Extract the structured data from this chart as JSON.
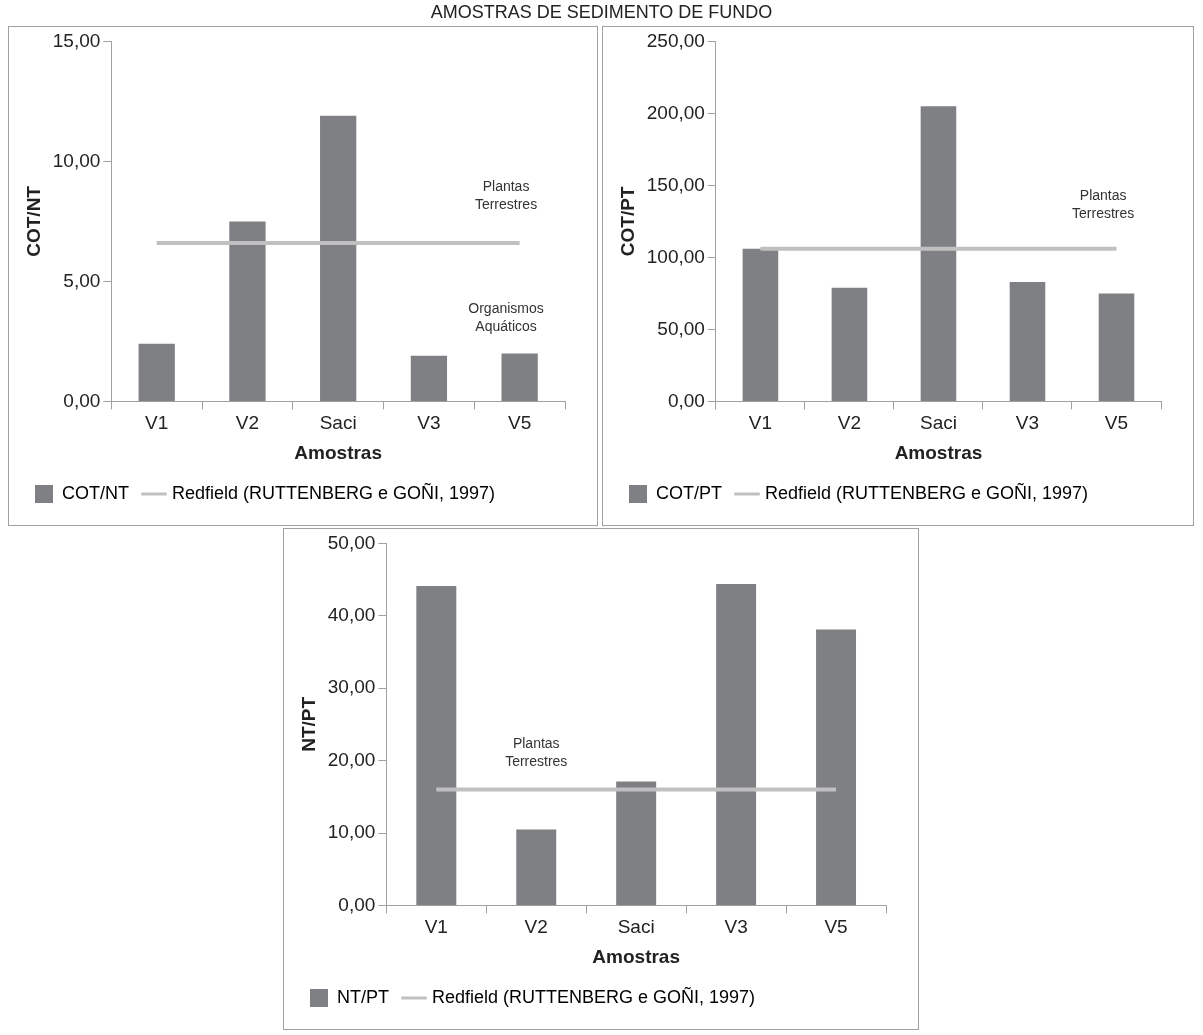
{
  "chart_data": [
    {
      "type": "bar",
      "title": "AMOSTRAS DE SEDIMENTO DE FUNDO",
      "xlabel": "Amostras",
      "ylabel": "COT/NT",
      "categories": [
        "V1",
        "V2",
        "Saci",
        "V3",
        "V5"
      ],
      "series": [
        {
          "name": "COT/NT",
          "color": "#7f8084",
          "values": [
            2.4,
            7.5,
            11.9,
            1.9,
            2.0
          ]
        },
        {
          "type": "line",
          "name": "Redfield (RUTTENBERG e GOÑI, 1997)",
          "color": "#c0c0c0",
          "values": [
            6.6,
            6.6,
            6.6,
            6.6,
            6.6
          ]
        }
      ],
      "ylim": [
        0,
        15
      ],
      "yticks": [
        {
          "value": 0,
          "label": "0,00"
        },
        {
          "value": 5,
          "label": "5,00"
        },
        {
          "value": 10,
          "label": "10,00"
        },
        {
          "value": 15,
          "label": "15,00"
        }
      ],
      "legend": "bottom",
      "marker": "none",
      "annotations": [
        "Plantas Terrestres",
        "Organismos Aquáticos"
      ]
    },
    {
      "type": "bar",
      "xlabel": "Amostras",
      "ylabel": "COT/PT",
      "categories": [
        "V1",
        "V2",
        "Saci",
        "V3",
        "V5"
      ],
      "series": [
        {
          "name": "COT/PT",
          "color": "#7f8084",
          "values": [
            106,
            79,
            205,
            83,
            75
          ]
        },
        {
          "type": "line",
          "name": "Redfield (RUTTENBERG e GOÑI, 1997)",
          "color": "#c0c0c0",
          "values": [
            106,
            106,
            106,
            106,
            106
          ]
        }
      ],
      "ylim": [
        0,
        250
      ],
      "yticks": [
        {
          "value": 0,
          "label": "0,00"
        },
        {
          "value": 50,
          "label": "50,00"
        },
        {
          "value": 100,
          "label": "100,00"
        },
        {
          "value": 150,
          "label": "150,00"
        },
        {
          "value": 200,
          "label": "200,00"
        },
        {
          "value": 250,
          "label": "250,00"
        }
      ],
      "legend": "bottom",
      "marker": "none",
      "annotations": [
        "Plantas Terrestres"
      ]
    },
    {
      "type": "bar",
      "xlabel": "Amostras",
      "ylabel": "NT/PT",
      "categories": [
        "V1",
        "V2",
        "Saci",
        "V3",
        "V5"
      ],
      "series": [
        {
          "name": "NT/PT",
          "color": "#7f8084",
          "values": [
            44.1,
            10.5,
            17.1,
            44.4,
            38.1
          ]
        },
        {
          "type": "line",
          "name": "Redfield (RUTTENBERG e GOÑI, 1997)",
          "color": "#c0c0c0",
          "values": [
            16,
            16,
            16,
            16,
            16
          ]
        }
      ],
      "ylim": [
        0,
        50
      ],
      "yticks": [
        {
          "value": 0,
          "label": "0,00"
        },
        {
          "value": 10,
          "label": "10,00"
        },
        {
          "value": 20,
          "label": "20,00"
        },
        {
          "value": 30,
          "label": "30,00"
        },
        {
          "value": 40,
          "label": "40,00"
        },
        {
          "value": 50,
          "label": "50,00"
        }
      ],
      "legend": "bottom",
      "marker": "none",
      "annotations": [
        "Plantas Terrestres"
      ]
    }
  ]
}
